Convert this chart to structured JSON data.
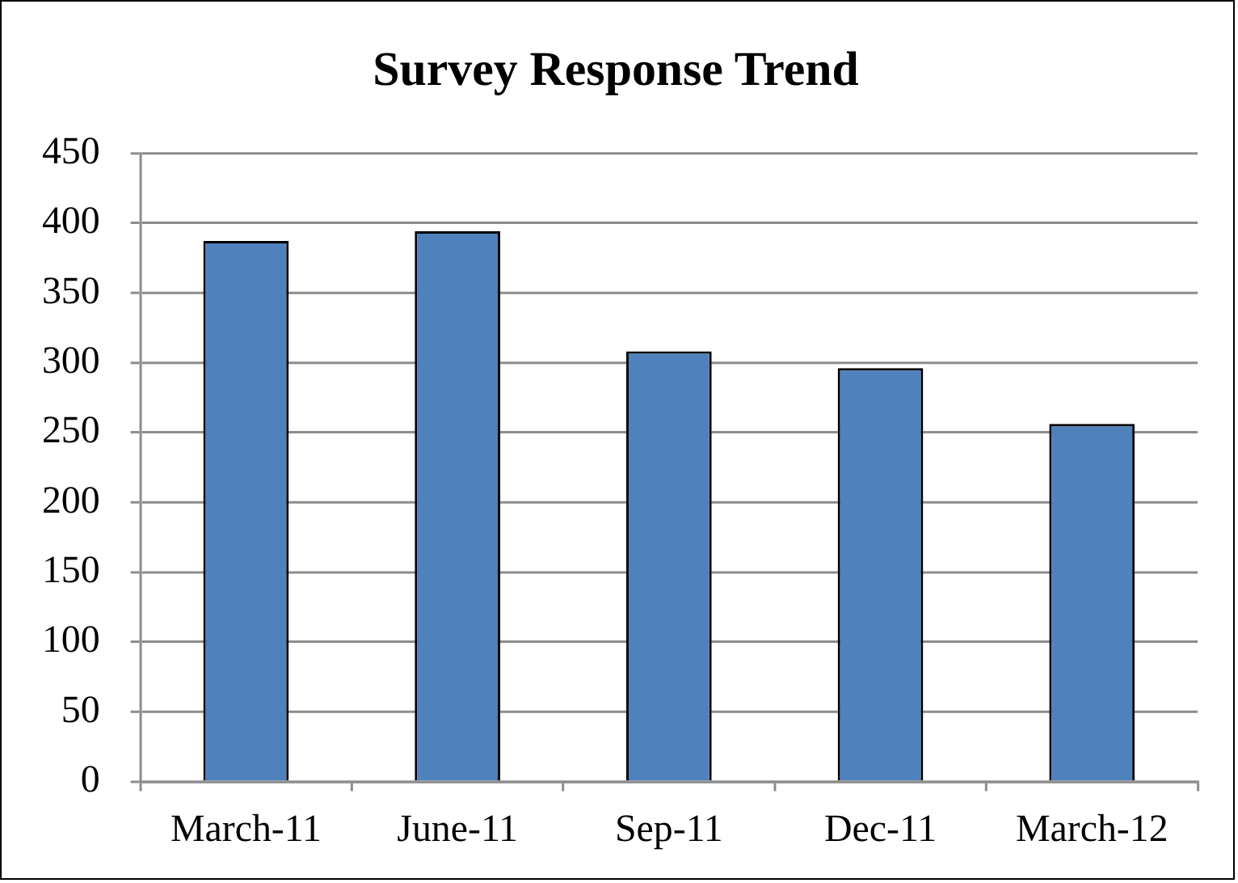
{
  "chart_data": {
    "type": "bar",
    "title": "Survey Response Trend",
    "categories": [
      "March-11",
      "June-11",
      "Sep-11",
      "Dec-11",
      "March-12"
    ],
    "values": [
      387,
      394,
      308,
      296,
      256
    ],
    "color": "#4f81bd",
    "ylim": [
      0,
      450
    ],
    "yticks": [
      0,
      50,
      100,
      150,
      200,
      250,
      300,
      350,
      400,
      450
    ],
    "grid": "y"
  }
}
